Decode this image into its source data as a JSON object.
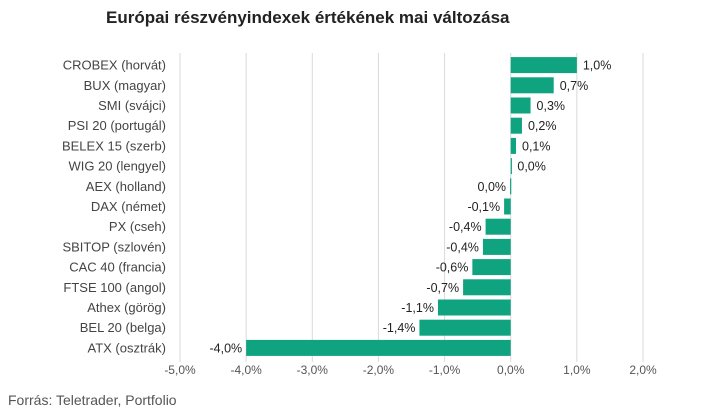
{
  "title": "Európai részvényindexek értékének mai változása",
  "source": "Forrás: Teletrader, Portfolio",
  "chart_data": {
    "type": "bar",
    "orientation": "horizontal",
    "categories": [
      "CROBEX (horvát)",
      "BUX (magyar)",
      "SMI (svájci)",
      "PSI 20 (portugál)",
      "BELEX 15 (szerb)",
      "WIG 20 (lengyel)",
      "AEX (holland)",
      "DAX (német)",
      "PX (cseh)",
      "SBITOP (szlovén)",
      "CAC 40 (francia)",
      "FTSE 100 (angol)",
      "Athex (görög)",
      "BEL 20 (belga)",
      "ATX (osztrák)"
    ],
    "values": [
      1.0,
      0.65,
      0.3,
      0.17,
      0.08,
      0.01,
      -0.01,
      -0.1,
      -0.38,
      -0.42,
      -0.58,
      -0.72,
      -1.1,
      -1.38,
      -4.0
    ],
    "data_labels": [
      "1,0%",
      "0,7%",
      "0,3%",
      "0,2%",
      "0,1%",
      "0,0%",
      "0,0%",
      "-0,1%",
      "-0,4%",
      "-0,4%",
      "-0,6%",
      "-0,7%",
      "-1,1%",
      "-1,4%",
      "-4,0%"
    ],
    "xlim": [
      -5,
      2
    ],
    "xticks": [
      -5,
      -4,
      -3,
      -2,
      -1,
      0,
      1,
      2
    ],
    "xtick_labels": [
      "-5,0%",
      "-4,0%",
      "-3,0%",
      "-2,0%",
      "-1,0%",
      "0,0%",
      "1,0%",
      "2,0%"
    ],
    "grid": "vertical",
    "legend": "none",
    "bar_color": "#0fa37f",
    "grid_color": "#d9d9d9"
  }
}
